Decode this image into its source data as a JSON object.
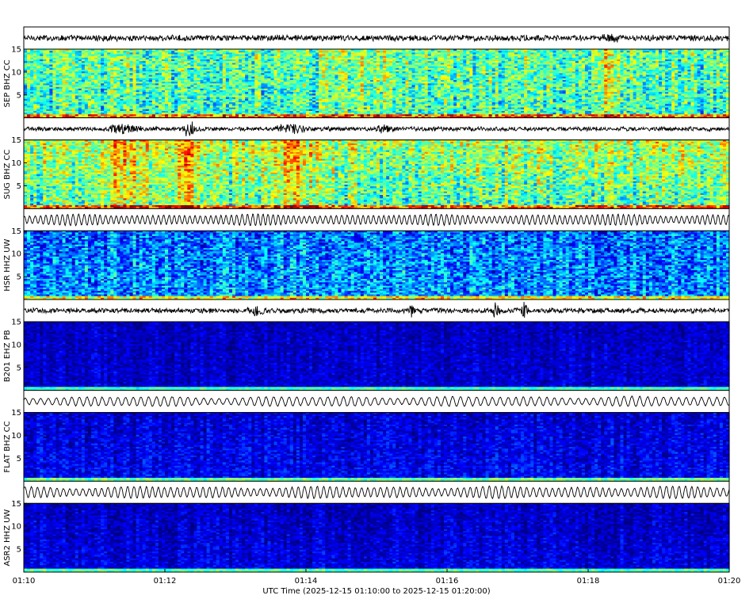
{
  "chart_data": {
    "type": "heatmap",
    "description_type": "seismic waveforms with spectrograms",
    "colormap": "jet",
    "x_tick_labels": [
      "01:10",
      "01:12",
      "01:14",
      "01:16",
      "01:18",
      "01:20"
    ],
    "x_title": "UTC Time (2025-12-15 01:10:00 to 2025-12-15 01:20:00)",
    "spectrogram_ylim": [
      0,
      15
    ],
    "spectrogram_y_ticks": [
      "5",
      "10",
      "15"
    ],
    "stations": [
      {
        "label": "SEP BHZ CC",
        "base_level": 0.42,
        "noise": 0.22,
        "high_freq_bias": 0.05,
        "events": [
          {
            "t": 0.48,
            "w": 0.05,
            "amp": 0.08
          },
          {
            "t": 0.83,
            "w": 0.015,
            "amp": 0.15
          }
        ],
        "wave": {
          "style": "noise",
          "amp": 0.35,
          "bursts": [
            {
              "t": 0.83,
              "w": 0.01,
              "amp": 0.5
            }
          ]
        }
      },
      {
        "label": "SUG BHZ CC",
        "base_level": 0.44,
        "noise": 0.22,
        "high_freq_bias": 0.12,
        "events": [
          {
            "t": 0.135,
            "w": 0.03,
            "amp": 0.15
          },
          {
            "t": 0.23,
            "w": 0.02,
            "amp": 0.18
          },
          {
            "t": 0.38,
            "w": 0.04,
            "amp": 0.12
          }
        ],
        "wave": {
          "style": "noise",
          "amp": 0.25,
          "bursts": [
            {
              "t": 0.14,
              "w": 0.02,
              "amp": 0.4
            },
            {
              "t": 0.235,
              "w": 0.008,
              "amp": 0.8
            },
            {
              "t": 0.38,
              "w": 0.02,
              "amp": 0.4
            },
            {
              "t": 0.51,
              "w": 0.01,
              "amp": 0.4
            }
          ]
        }
      },
      {
        "label": "HSR HHZ UW",
        "base_level": 0.28,
        "noise": 0.2,
        "high_freq_bias": -0.05,
        "events": [],
        "wave": {
          "style": "oscillation",
          "amp": 0.6,
          "period": 0.0075,
          "bursts": []
        }
      },
      {
        "label": "B201 EHZ PB",
        "base_level": 0.08,
        "noise": 0.08,
        "high_freq_bias": -0.02,
        "events": [],
        "wave": {
          "style": "noise",
          "amp": 0.3,
          "bursts": [
            {
              "t": 0.33,
              "w": 0.01,
              "amp": 0.5
            },
            {
              "t": 0.55,
              "w": 0.004,
              "amp": 0.9
            },
            {
              "t": 0.67,
              "w": 0.004,
              "amp": 0.9
            },
            {
              "t": 0.71,
              "w": 0.003,
              "amp": 1.2
            }
          ]
        }
      },
      {
        "label": "FLAT BHZ CC",
        "base_level": 0.12,
        "noise": 0.1,
        "high_freq_bias": -0.04,
        "events": [],
        "wave": {
          "style": "oscillation",
          "amp": 0.55,
          "period": 0.011,
          "bursts": []
        }
      },
      {
        "label": "ASR2 HHZ UW",
        "base_level": 0.1,
        "noise": 0.09,
        "high_freq_bias": -0.04,
        "events": [],
        "wave": {
          "style": "oscillation",
          "amp": 0.65,
          "period": 0.009,
          "bursts": []
        }
      }
    ]
  }
}
